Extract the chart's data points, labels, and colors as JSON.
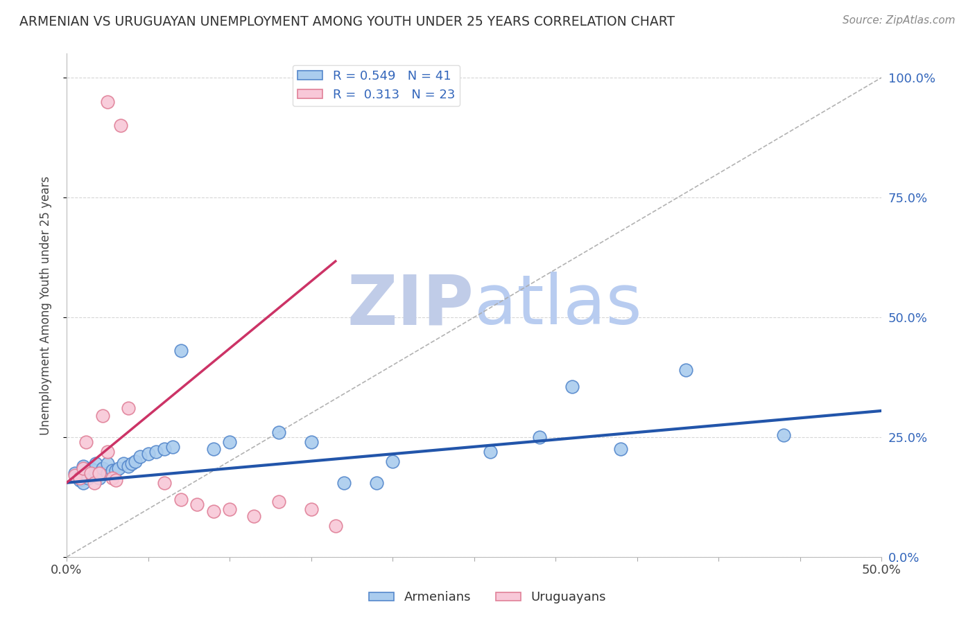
{
  "title": "ARMENIAN VS URUGUAYAN UNEMPLOYMENT AMONG YOUTH UNDER 25 YEARS CORRELATION CHART",
  "source": "Source: ZipAtlas.com",
  "ylabel": "Unemployment Among Youth under 25 years",
  "xlim": [
    0,
    0.5
  ],
  "ylim": [
    0,
    1.05
  ],
  "xticks": [
    0.0,
    0.05,
    0.1,
    0.15,
    0.2,
    0.25,
    0.3,
    0.35,
    0.4,
    0.45,
    0.5
  ],
  "yticks_right": [
    0.0,
    0.25,
    0.5,
    0.75,
    1.0
  ],
  "ytick_labels_right": [
    "0.0%",
    "25.0%",
    "50.0%",
    "75.0%",
    "100.0%"
  ],
  "armenians_x": [
    0.005,
    0.008,
    0.01,
    0.01,
    0.012,
    0.013,
    0.015,
    0.015,
    0.017,
    0.018,
    0.02,
    0.02,
    0.022,
    0.025,
    0.025,
    0.028,
    0.03,
    0.032,
    0.035,
    0.038,
    0.04,
    0.042,
    0.045,
    0.05,
    0.055,
    0.06,
    0.065,
    0.07,
    0.09,
    0.1,
    0.13,
    0.15,
    0.17,
    0.19,
    0.2,
    0.26,
    0.29,
    0.31,
    0.34,
    0.38,
    0.44
  ],
  "armenians_y": [
    0.175,
    0.16,
    0.19,
    0.155,
    0.17,
    0.165,
    0.185,
    0.175,
    0.18,
    0.195,
    0.165,
    0.175,
    0.185,
    0.175,
    0.195,
    0.18,
    0.18,
    0.185,
    0.195,
    0.19,
    0.195,
    0.2,
    0.21,
    0.215,
    0.22,
    0.225,
    0.23,
    0.43,
    0.225,
    0.24,
    0.26,
    0.24,
    0.155,
    0.155,
    0.2,
    0.22,
    0.25,
    0.355,
    0.225,
    0.39,
    0.255
  ],
  "uruguayans_x": [
    0.005,
    0.008,
    0.01,
    0.012,
    0.015,
    0.017,
    0.02,
    0.022,
    0.025,
    0.025,
    0.028,
    0.03,
    0.033,
    0.038,
    0.06,
    0.07,
    0.08,
    0.09,
    0.1,
    0.115,
    0.13,
    0.15,
    0.165
  ],
  "uruguayans_y": [
    0.17,
    0.165,
    0.185,
    0.24,
    0.175,
    0.155,
    0.175,
    0.295,
    0.22,
    0.95,
    0.165,
    0.16,
    0.9,
    0.31,
    0.155,
    0.12,
    0.11,
    0.095,
    0.1,
    0.085,
    0.115,
    0.1,
    0.065
  ],
  "armenians_color": "#aaccee",
  "armenians_edge_color": "#5588cc",
  "uruguayans_color": "#f8c8d8",
  "uruguayans_edge_color": "#e08098",
  "armenians_trend_color": "#2255aa",
  "uruguayans_trend_color": "#cc3366",
  "R_armenians": 0.549,
  "N_armenians": 41,
  "R_uruguayans": 0.313,
  "N_uruguayans": 23,
  "legend_armenians": "Armenians",
  "legend_uruguayans": "Uruguayans",
  "watermark_zip": "ZIP",
  "watermark_atlas": "atlas",
  "watermark_zip_color": "#c0cce8",
  "watermark_atlas_color": "#b8ccf0",
  "background_color": "#ffffff",
  "grid_color": "#cccccc"
}
